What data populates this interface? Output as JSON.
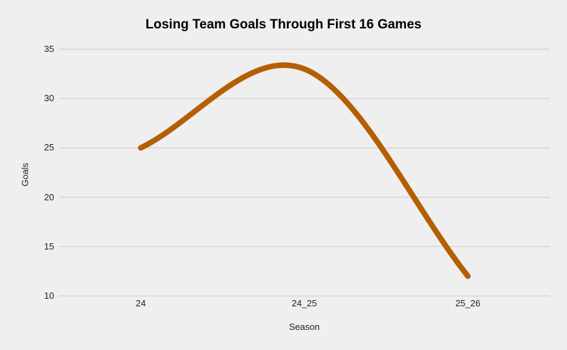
{
  "title": "Losing Team Goals Through First 16 Games",
  "colors": {
    "background": "#efefef",
    "gridline": "#c9c9c9",
    "series_line": "#b45f06",
    "title_text": "#000000",
    "tick_text": "#222222"
  },
  "chart_data": {
    "type": "line",
    "smooth": true,
    "title": "Losing Team Goals Through First 16 Games",
    "xlabel": "Season",
    "ylabel": "Goals",
    "categories": [
      "24",
      "24_25",
      "25_26"
    ],
    "values": [
      25,
      33,
      12
    ],
    "ylim": [
      10,
      35
    ],
    "yticks": [
      35,
      30,
      25,
      20,
      15,
      10
    ],
    "grid": true,
    "legend_position": "none",
    "line_width": 8
  }
}
